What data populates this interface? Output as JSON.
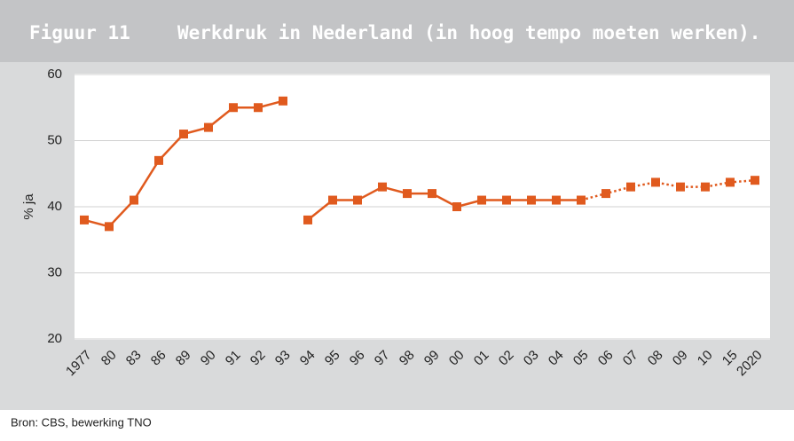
{
  "chart_data": {
    "type": "line",
    "title": "Figuur 11",
    "subtitle": "Werkdruk in Nederland (in hoog tempo moeten werken).",
    "ylabel": "% ja",
    "source": "Bron: CBS, bewerking TNO",
    "categories": [
      "1977",
      "80",
      "83",
      "86",
      "89",
      "90",
      "91",
      "92",
      "93",
      "94",
      "95",
      "96",
      "97",
      "98",
      "99",
      "00",
      "01",
      "02",
      "03",
      "04",
      "05",
      "06",
      "07",
      "08",
      "09",
      "10",
      "15",
      "2020"
    ],
    "series": [
      {
        "color": "#e05a1e",
        "style": "solid",
        "values": [
          38,
          37,
          41,
          47,
          51,
          52,
          55,
          55,
          56,
          null,
          null,
          null,
          null,
          null,
          null,
          null,
          null,
          null,
          null,
          null,
          null,
          null,
          null,
          null,
          null,
          null,
          null,
          null
        ]
      },
      {
        "color": "#e05a1e",
        "style": "solid",
        "values": [
          null,
          null,
          null,
          null,
          null,
          null,
          null,
          null,
          null,
          38,
          41,
          41,
          43,
          42,
          42,
          40,
          41,
          41,
          41,
          41,
          41,
          null,
          null,
          null,
          null,
          null,
          null,
          null
        ]
      },
      {
        "color": "#e05a1e",
        "style": "dotted",
        "values": [
          null,
          null,
          null,
          null,
          null,
          null,
          null,
          null,
          null,
          null,
          null,
          null,
          null,
          null,
          null,
          null,
          null,
          null,
          null,
          null,
          41,
          42,
          43,
          43.7,
          43,
          43,
          43.7,
          44
        ]
      }
    ],
    "ylim": [
      20,
      60
    ],
    "yticks": [
      20,
      30,
      40,
      50,
      60
    ],
    "grid": true
  }
}
